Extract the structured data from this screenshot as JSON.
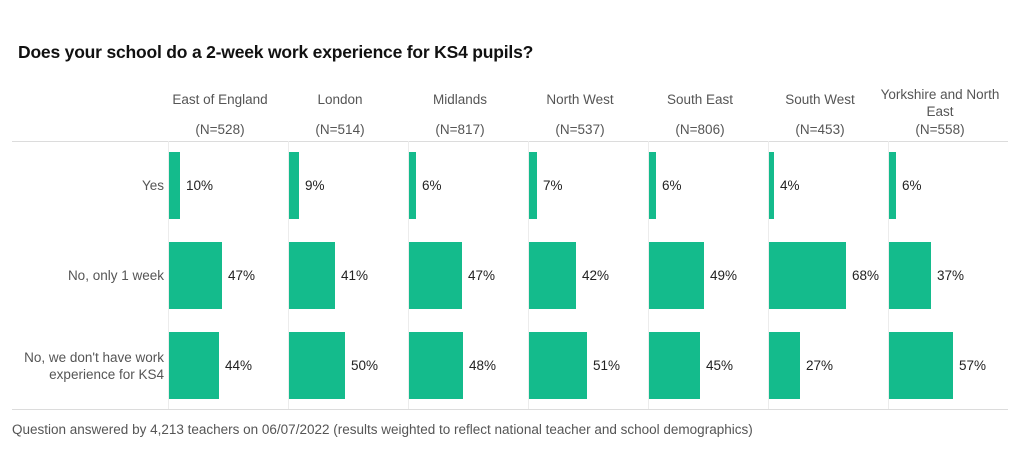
{
  "title": "Does your school do a 2-week work experience for KS4 pupils?",
  "footer": "Question answered by 4,213 teachers on 06/07/2022 (results weighted to reflect national teacher and school demographics)",
  "colors": {
    "bar": "#14bb8c",
    "text": "#222222",
    "muted": "#555555"
  },
  "regions": [
    {
      "name": "East of England",
      "n": "(N=528)"
    },
    {
      "name": "London",
      "n": "(N=514)"
    },
    {
      "name": "Midlands",
      "n": "(N=817)"
    },
    {
      "name": "North West",
      "n": "(N=537)"
    },
    {
      "name": "South East",
      "n": "(N=806)"
    },
    {
      "name": "South West",
      "n": "(N=453)"
    },
    {
      "name": "Yorkshire and North East",
      "n": "(N=558)"
    }
  ],
  "rows": [
    {
      "label": "Yes",
      "values": [
        "10%",
        "9%",
        "6%",
        "7%",
        "6%",
        "4%",
        "6%"
      ]
    },
    {
      "label": "No, only 1 week",
      "values": [
        "47%",
        "41%",
        "47%",
        "42%",
        "49%",
        "68%",
        "37%"
      ]
    },
    {
      "label": "No, we don't have work experience for KS4",
      "values": [
        "44%",
        "50%",
        "48%",
        "51%",
        "45%",
        "27%",
        "57%"
      ]
    }
  ],
  "chart_data": {
    "type": "bar",
    "orientation": "horizontal",
    "layout": "small-multiples",
    "title": "Does your school do a 2-week work experience for KS4 pupils?",
    "categories": [
      "Yes",
      "No, only 1 week",
      "No, we don't have work experience for KS4"
    ],
    "series": [
      {
        "name": "East of England",
        "n": 528,
        "values": [
          10,
          47,
          44
        ]
      },
      {
        "name": "London",
        "n": 514,
        "values": [
          9,
          41,
          50
        ]
      },
      {
        "name": "Midlands",
        "n": 817,
        "values": [
          6,
          47,
          48
        ]
      },
      {
        "name": "North West",
        "n": 537,
        "values": [
          7,
          42,
          51
        ]
      },
      {
        "name": "South East",
        "n": 806,
        "values": [
          6,
          49,
          45
        ]
      },
      {
        "name": "South West",
        "n": 453,
        "values": [
          4,
          68,
          27
        ]
      },
      {
        "name": "Yorkshire and North East",
        "n": 558,
        "values": [
          6,
          37,
          57
        ]
      }
    ],
    "unit": "%",
    "xlabel": "",
    "ylabel": "",
    "grid": false,
    "legend": "none",
    "note": "Question answered by 4,213 teachers on 06/07/2022 (results weighted to reflect national teacher and school demographics)"
  }
}
